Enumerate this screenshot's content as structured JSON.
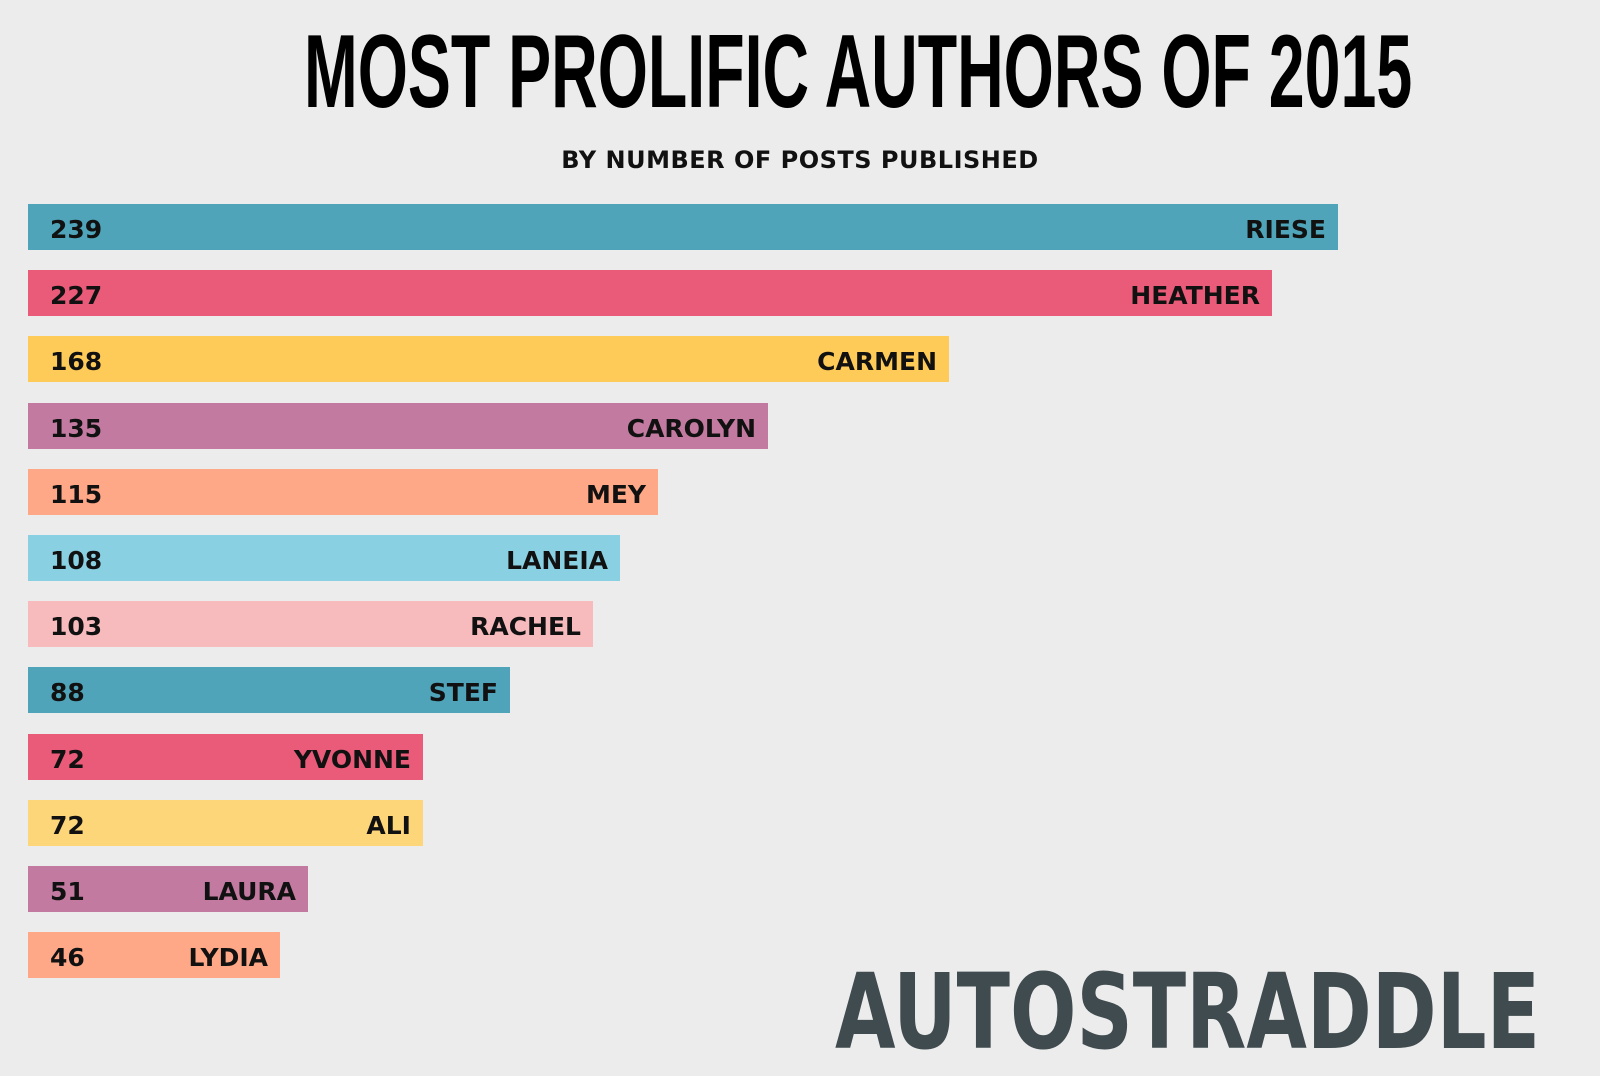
{
  "chart_data": {
    "type": "bar",
    "orientation": "horizontal",
    "title": "MOST PROLIFIC AUTHORS OF 2015",
    "subtitle": "BY NUMBER OF POSTS PUBLISHED",
    "xlim": [
      0,
      239
    ],
    "grid": false,
    "categories": [
      "RIESE",
      "HEATHER",
      "CARMEN",
      "CAROLYN",
      "MEY",
      "LANEIA",
      "RACHEL",
      "STEF",
      "YVONNE",
      "ALI",
      "LAURA",
      "LYDIA"
    ],
    "values": [
      239,
      227,
      168,
      135,
      115,
      108,
      103,
      88,
      72,
      72,
      51,
      46
    ],
    "value_labels": [
      "239",
      "227",
      "168",
      "135",
      "115",
      "108",
      "103",
      "88",
      "72",
      "72",
      "51",
      "46"
    ],
    "colors": [
      "#4fa4b9",
      "#ea5b79",
      "#fecb58",
      "#c27aa0",
      "#fea887",
      "#89d0e2",
      "#f8bbbd",
      "#4fa4b9",
      "#ea5b79",
      "#fed67a",
      "#c27aa0",
      "#fea887"
    ]
  },
  "logo": {
    "text": "AUTOSTRADDLE",
    "color": "#3f4b4e"
  }
}
